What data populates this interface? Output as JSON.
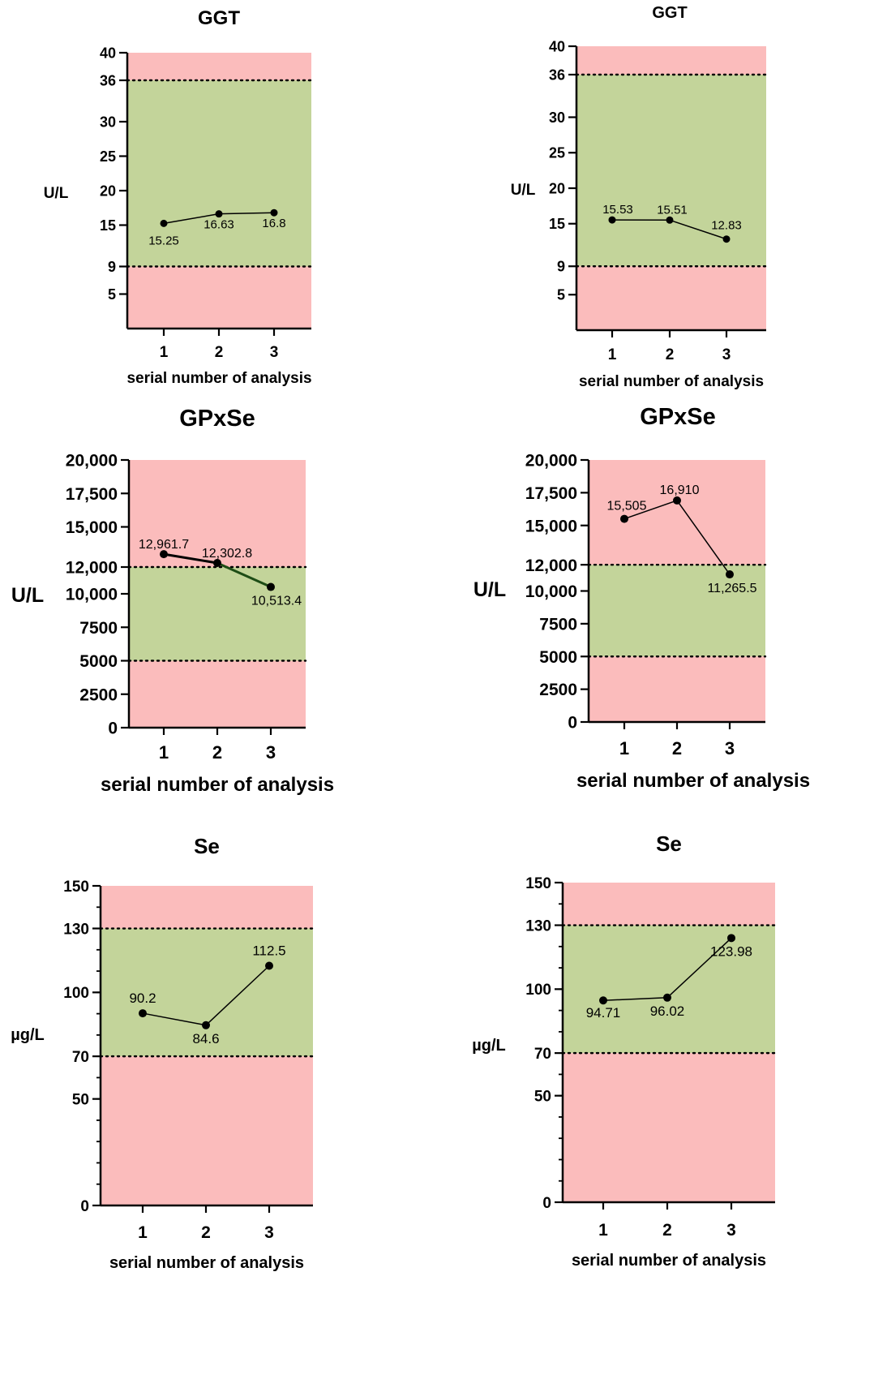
{
  "colors": {
    "out_of_range": "#fbbcbc",
    "in_range": "#c3d49a",
    "axis": "#000000",
    "series_default": "#000000",
    "series_dark_green": "#1e4d16"
  },
  "chart_data": [
    {
      "type": "line",
      "title": "GGT",
      "ylabel": "U/L",
      "xlabel": "serial number of analysis",
      "categories": [
        "1",
        "2",
        "3"
      ],
      "values": [
        15.25,
        16.63,
        16.8
      ],
      "point_labels": [
        "15.25",
        "16.63",
        "16.8"
      ],
      "yticks": [
        "5",
        "9",
        "15",
        "20",
        "25",
        "30",
        "36",
        "40"
      ],
      "ylim": [
        0,
        40
      ],
      "reference_range": [
        9,
        36
      ],
      "grid": false
    },
    {
      "type": "line",
      "title": "GGT",
      "ylabel": "U/L",
      "xlabel": "serial number of analysis",
      "categories": [
        "1",
        "2",
        "3"
      ],
      "values": [
        15.53,
        15.51,
        12.83
      ],
      "point_labels": [
        "15.53",
        "15.51",
        "12.83"
      ],
      "yticks": [
        "5",
        "9",
        "15",
        "20",
        "25",
        "30",
        "36",
        "40"
      ],
      "ylim": [
        0,
        40
      ],
      "reference_range": [
        9,
        36
      ],
      "grid": false
    },
    {
      "type": "line",
      "title": "GPxSe",
      "ylabel": "U/L",
      "xlabel": "serial number of analysis",
      "categories": [
        "1",
        "2",
        "3"
      ],
      "values": [
        12961.7,
        12302.8,
        10513.4
      ],
      "point_labels": [
        "12,961.7",
        "12,302.8",
        "10,513.4"
      ],
      "yticks": [
        "0",
        "2500",
        "5000",
        "7500",
        "10,000",
        "12,000",
        "15,000",
        "17,500",
        "20,000"
      ],
      "ylim": [
        0,
        20000
      ],
      "reference_range": [
        5000,
        12000
      ],
      "grid": false
    },
    {
      "type": "line",
      "title": "GPxSe",
      "ylabel": "U/L",
      "xlabel": "serial number of analysis",
      "categories": [
        "1",
        "2",
        "3"
      ],
      "values": [
        15505,
        16910,
        11265.5
      ],
      "point_labels": [
        "15,505",
        "16,910",
        "11,265.5"
      ],
      "yticks": [
        "0",
        "2500",
        "5000",
        "7500",
        "10,000",
        "12,000",
        "15,000",
        "17,500",
        "20,000"
      ],
      "ylim": [
        0,
        20000
      ],
      "reference_range": [
        5000,
        12000
      ],
      "grid": false
    },
    {
      "type": "line",
      "title": "Se",
      "ylabel": "µg/L",
      "xlabel": "serial number of analysis",
      "categories": [
        "1",
        "2",
        "3"
      ],
      "values": [
        90.2,
        84.6,
        112.5
      ],
      "point_labels": [
        "90.2",
        "84.6",
        "112.5"
      ],
      "yticks": [
        "0",
        "50",
        "70",
        "100",
        "130",
        "150"
      ],
      "ylim": [
        0,
        150
      ],
      "reference_range": [
        70,
        130
      ],
      "grid": false
    },
    {
      "type": "line",
      "title": "Se",
      "ylabel": "µg/L",
      "xlabel": "serial number of analysis",
      "categories": [
        "1",
        "2",
        "3"
      ],
      "values": [
        94.71,
        96.02,
        123.98
      ],
      "point_labels": [
        "94.71",
        "96.02",
        "123.98"
      ],
      "yticks": [
        "0",
        "50",
        "70",
        "100",
        "130",
        "150"
      ],
      "ylim": [
        0,
        150
      ],
      "reference_range": [
        70,
        130
      ],
      "grid": false
    }
  ]
}
